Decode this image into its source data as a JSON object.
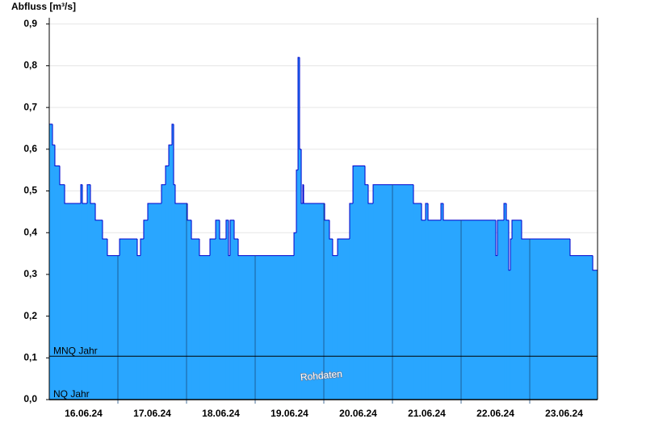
{
  "chart_data": {
    "type": "step-area",
    "y_label": "Abfluss [m³/s]",
    "x": [
      0,
      0.047,
      0.082,
      0.153,
      0.224,
      0.459,
      0.482,
      0.553,
      0.6,
      0.671,
      0.776,
      0.847,
      1.024,
      1.282,
      1.329,
      1.376,
      1.435,
      1.635,
      1.694,
      1.741,
      1.788,
      1.812,
      1.835,
      2.012,
      2.071,
      2.188,
      2.341,
      2.424,
      2.482,
      2.576,
      2.612,
      2.635,
      2.694,
      2.753,
      3.565,
      3.6,
      3.624,
      3.647,
      3.671,
      3.694,
      3.706,
      4.012,
      4.082,
      4.129,
      4.2,
      4.376,
      4.424,
      4.6,
      4.647,
      4.718,
      5.306,
      5.424,
      5.482,
      5.518,
      5.706,
      5.741,
      6.506,
      6.529,
      6.624,
      6.659,
      6.694,
      6.718,
      6.741,
      6.882,
      7.588,
      7.918
    ],
    "values": [
      0.66,
      0.61,
      0.56,
      0.515,
      0.47,
      0.515,
      0.47,
      0.515,
      0.47,
      0.43,
      0.385,
      0.345,
      0.385,
      0.345,
      0.385,
      0.43,
      0.47,
      0.515,
      0.56,
      0.61,
      0.66,
      0.515,
      0.47,
      0.43,
      0.385,
      0.345,
      0.385,
      0.43,
      0.385,
      0.43,
      0.345,
      0.43,
      0.385,
      0.345,
      0.4,
      0.55,
      0.82,
      0.6,
      0.47,
      0.515,
      0.47,
      0.43,
      0.385,
      0.345,
      0.385,
      0.47,
      0.56,
      0.515,
      0.47,
      0.515,
      0.47,
      0.43,
      0.47,
      0.43,
      0.47,
      0.43,
      0.345,
      0.43,
      0.47,
      0.43,
      0.31,
      0.385,
      0.43,
      0.385,
      0.345,
      0.31
    ],
    "fill_color": "#29a6ff",
    "line_color": "#0000cc",
    "xlim": [
      0,
      7.988
    ],
    "ylim": [
      0,
      0.915
    ],
    "yticks": [
      {
        "value": 0,
        "label": "0,0"
      },
      {
        "value": 0.1,
        "label": "0,1"
      },
      {
        "value": 0.2,
        "label": "0,2"
      },
      {
        "value": 0.3,
        "label": "0,3"
      },
      {
        "value": 0.4,
        "label": "0,4"
      },
      {
        "value": 0.5,
        "label": "0,5"
      },
      {
        "value": 0.6,
        "label": "0,6"
      },
      {
        "value": 0.7,
        "label": "0,7"
      },
      {
        "value": 0.8,
        "label": "0,8"
      },
      {
        "value": 0.9,
        "label": "0,9"
      }
    ],
    "xticks": [
      {
        "value": 0.5,
        "label": "16.06.24"
      },
      {
        "value": 1.5,
        "label": "17.06.24"
      },
      {
        "value": 2.5,
        "label": "18.06.24"
      },
      {
        "value": 3.5,
        "label": "19.06.24"
      },
      {
        "value": 4.5,
        "label": "20.06.24"
      },
      {
        "value": 5.5,
        "label": "21.06.24"
      },
      {
        "value": 6.5,
        "label": "22.06.24"
      },
      {
        "value": 7.5,
        "label": "23.06.24"
      }
    ],
    "day_lines": [
      1,
      2,
      3,
      4,
      5,
      6,
      7
    ],
    "grid": true,
    "reference_lines": [
      {
        "label": "MNQ Jahr",
        "value": 0.104
      },
      {
        "label": "NQ Jahr",
        "value": 0
      }
    ],
    "watermark": "Rohdaten"
  }
}
